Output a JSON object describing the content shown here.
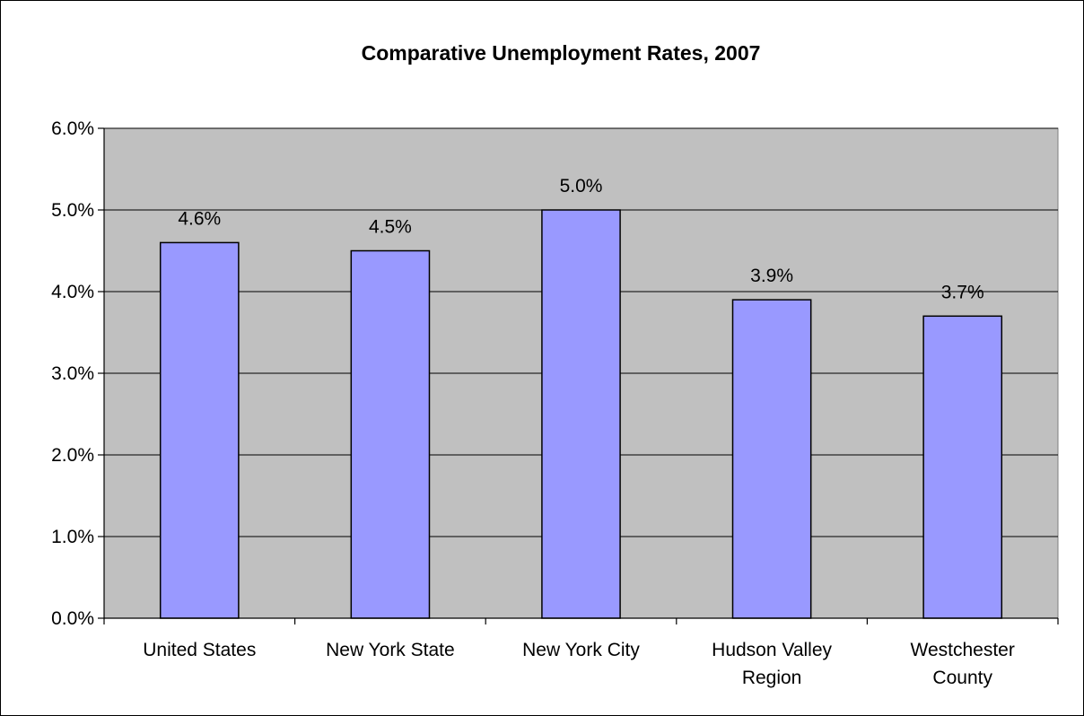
{
  "chart_data": {
    "type": "bar",
    "title": "Comparative Unemployment Rates, 2007",
    "xlabel": "",
    "ylabel": "",
    "categories": [
      [
        "United States"
      ],
      [
        "New York State"
      ],
      [
        "New York City"
      ],
      [
        "Hudson Valley",
        "Region"
      ],
      [
        "Westchester",
        "County"
      ]
    ],
    "values": [
      4.6,
      4.5,
      5.0,
      3.9,
      3.7
    ],
    "data_labels": [
      "4.6%",
      "4.5%",
      "5.0%",
      "3.9%",
      "3.7%"
    ],
    "ylim": [
      0,
      6
    ],
    "yticks": [
      0,
      1,
      2,
      3,
      4,
      5,
      6
    ],
    "ytick_labels": [
      "0.0%",
      "1.0%",
      "2.0%",
      "3.0%",
      "4.0%",
      "5.0%",
      "6.0%"
    ],
    "grid": true,
    "legend": "none",
    "colors": {
      "bar_fill": "#9999ff",
      "bar_stroke": "#000000",
      "plot_bg": "#c0c0c0",
      "gridline": "#000000"
    }
  }
}
